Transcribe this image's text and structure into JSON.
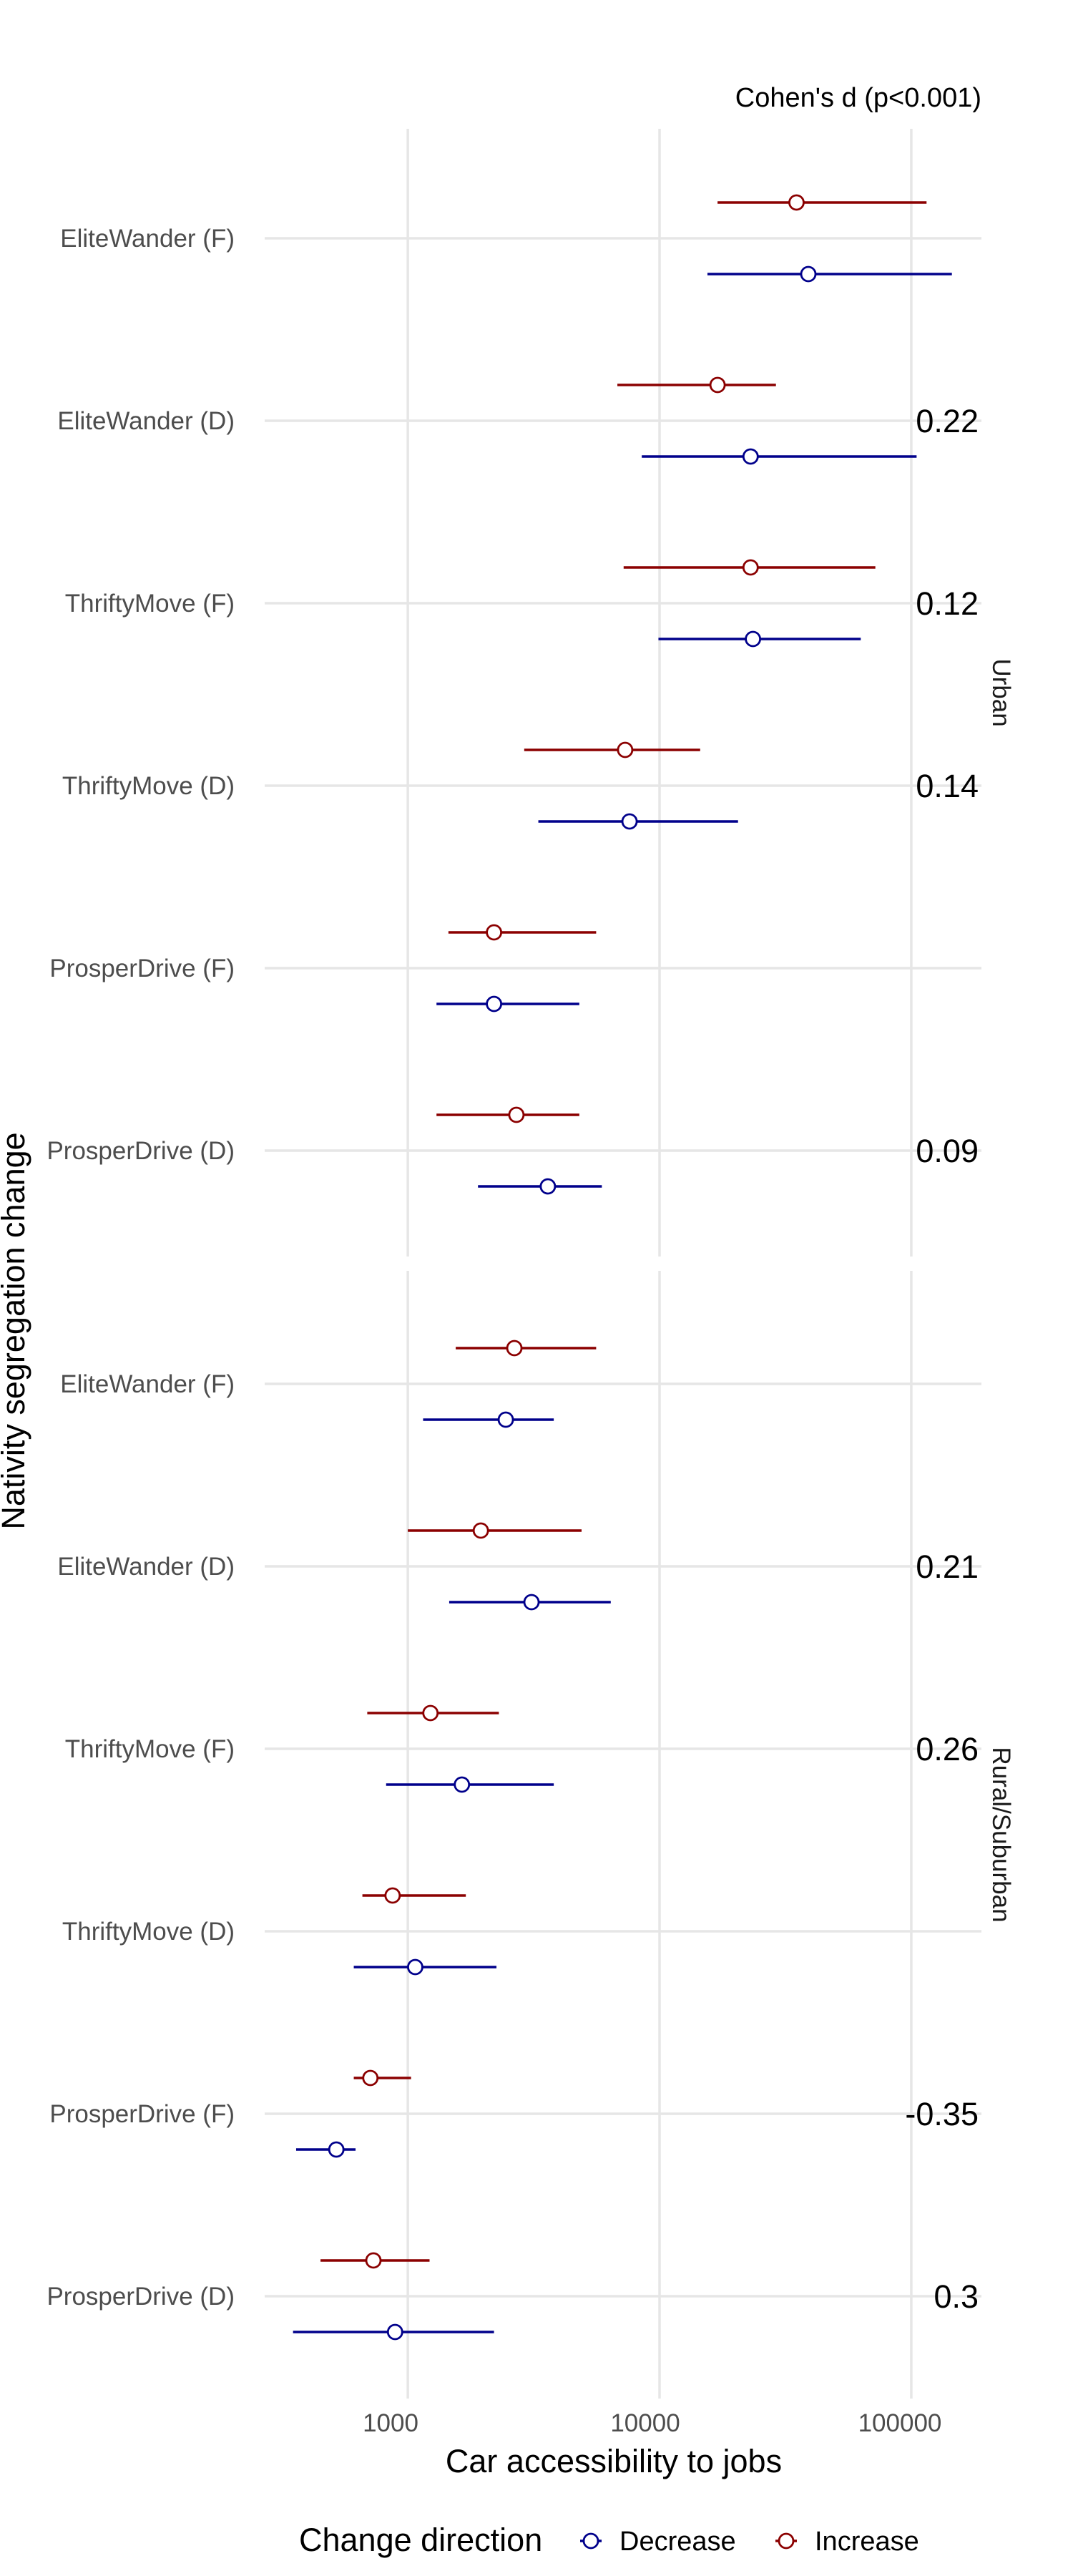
{
  "chart_data": {
    "type": "errorbar",
    "x_scale": "log10",
    "xlabel": "Car accessibility to jobs",
    "ylabel": "Nativity segregation change",
    "xlim": [
      270,
      190000
    ],
    "x_ticks": [
      1000,
      10000,
      100000
    ],
    "x_tick_labels": [
      "1000",
      "10000",
      "100000"
    ],
    "cohen_header": "Cohen's d (p<0.001)",
    "grid": true,
    "legend": {
      "position": "bottom",
      "title": "Change direction",
      "items": [
        {
          "label": "Decrease",
          "color": "#00008b"
        },
        {
          "label": "Increase",
          "color": "#8b0000"
        }
      ]
    },
    "panels": [
      {
        "strip": "Urban",
        "categories": [
          "EliteWander (F)",
          "EliteWander (D)",
          "ThriftyMove (F)",
          "ThriftyMove (D)",
          "ProsperDrive (F)",
          "ProsperDrive (D)"
        ],
        "cohen_d": [
          "",
          "0.22",
          "0.12",
          "0.14",
          "",
          "0.09"
        ],
        "series": [
          {
            "name": "Increase",
            "color": "#8b0000",
            "point": [
              35000,
              17000,
              23000,
              7300,
              2200,
              2700
            ],
            "low": [
              17000,
              6800,
              7200,
              2900,
              1450,
              1300
            ],
            "high": [
              115000,
              29000,
              72000,
              14500,
              5600,
              4800
            ]
          },
          {
            "name": "Decrease",
            "color": "#00008b",
            "point": [
              39000,
              23000,
              23500,
              7600,
              2200,
              3600
            ],
            "low": [
              15500,
              8500,
              9900,
              3300,
              1300,
              1900
            ],
            "high": [
              145000,
              105000,
              63000,
              20500,
              4800,
              5900
            ]
          }
        ]
      },
      {
        "strip": "Rural/Suburban",
        "categories": [
          "EliteWander (F)",
          "EliteWander (D)",
          "ThriftyMove (F)",
          "ThriftyMove (D)",
          "ProsperDrive (F)",
          "ProsperDrive (D)"
        ],
        "cohen_d": [
          "",
          "0.21",
          "0.26",
          "",
          "-0.35",
          "0.3"
        ],
        "series": [
          {
            "name": "Increase",
            "color": "#8b0000",
            "point": [
              2650,
              1950,
              1230,
              870,
              710,
              730
            ],
            "low": [
              1550,
              1000,
              690,
              660,
              610,
              450
            ],
            "high": [
              5600,
              4900,
              2300,
              1700,
              1030,
              1220
            ]
          },
          {
            "name": "Decrease",
            "color": "#00008b",
            "point": [
              2450,
              3100,
              1640,
              1070,
              520,
              890
            ],
            "low": [
              1150,
              1460,
              820,
              610,
              360,
              350
            ],
            "high": [
              3800,
              6400,
              3800,
              2250,
              620,
              2200
            ]
          }
        ]
      }
    ]
  }
}
